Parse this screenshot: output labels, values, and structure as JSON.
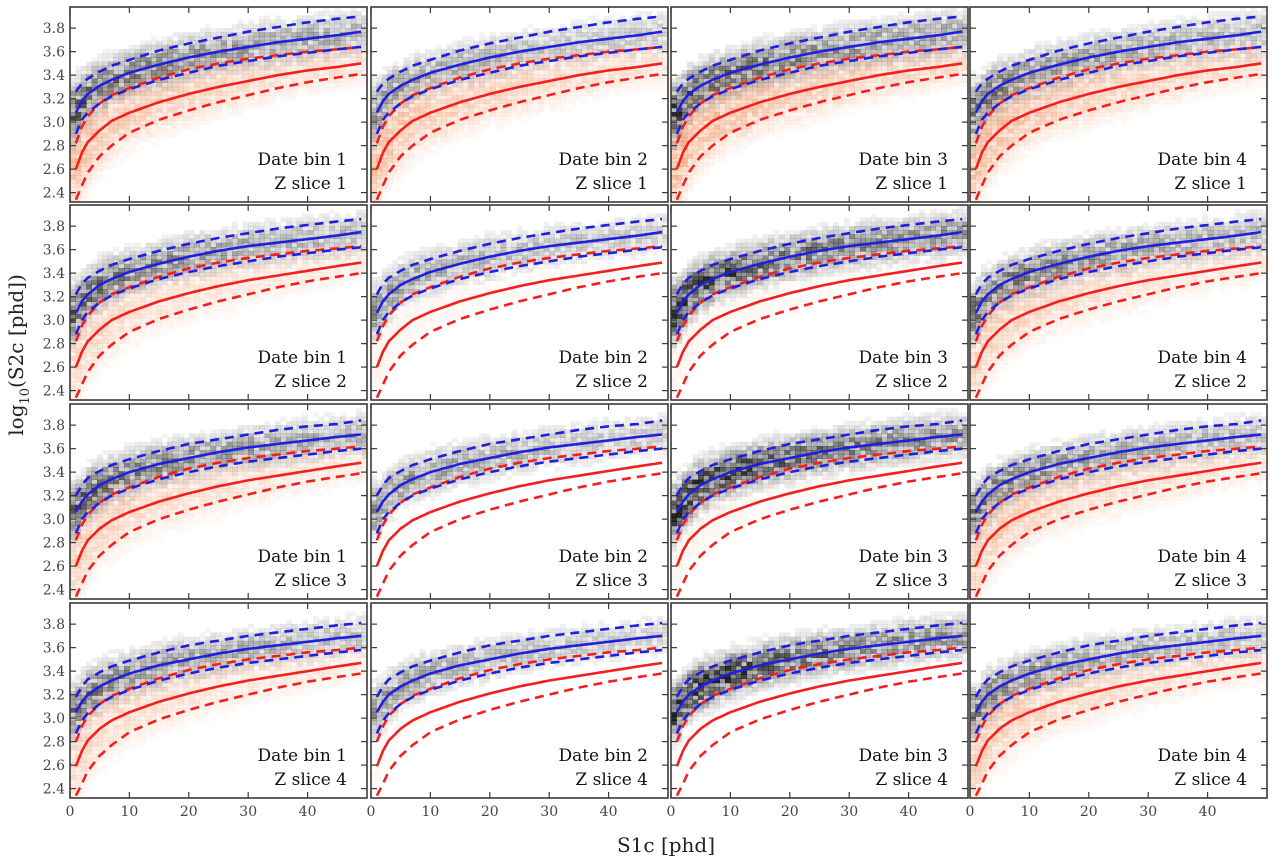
{
  "figure": {
    "xlabel": "S1c [phd]",
    "ylabel_base": "log",
    "ylabel_sub": "10",
    "ylabel_rest": "(S2c [phd])"
  },
  "colors": {
    "er_band": "#1f1fe0",
    "nr_band": "#f21f1f",
    "er_hist": "#000000",
    "nr_hist": "#f07a3a",
    "frame": "#3a3a3a"
  },
  "chart_data": {
    "type": "heatmap",
    "layout": "grid 4 rows x 4 columns",
    "xlabel": "S1c [phd]",
    "ylabel": "log10(S2c [phd])",
    "xlim": [
      0,
      50
    ],
    "ylim": [
      2.32,
      3.98
    ],
    "xticks": [
      0,
      10,
      20,
      30,
      40
    ],
    "yticks": [
      2.4,
      2.6,
      2.8,
      3.0,
      3.2,
      3.4,
      3.6,
      3.8
    ],
    "columns": [
      "Date bin 1",
      "Date bin 2",
      "Date bin 3",
      "Date bin 4"
    ],
    "rows": [
      "Z slice 1",
      "Z slice 2",
      "Z slice 3",
      "Z slice 4"
    ],
    "band_x": [
      1,
      2,
      3,
      5,
      7,
      10,
      15,
      20,
      25,
      30,
      35,
      40,
      45,
      49
    ],
    "bands_by_row": [
      {
        "row": "Z slice 1",
        "er_median": [
          3.08,
          3.18,
          3.24,
          3.31,
          3.36,
          3.42,
          3.49,
          3.55,
          3.6,
          3.64,
          3.68,
          3.71,
          3.74,
          3.77
        ],
        "er_upper": [
          3.26,
          3.33,
          3.37,
          3.43,
          3.48,
          3.53,
          3.61,
          3.67,
          3.72,
          3.77,
          3.81,
          3.85,
          3.88,
          3.9
        ],
        "er_lower": [
          2.9,
          3.02,
          3.08,
          3.16,
          3.22,
          3.28,
          3.36,
          3.42,
          3.48,
          3.52,
          3.56,
          3.59,
          3.62,
          3.64
        ],
        "nr_median": [
          2.6,
          2.74,
          2.83,
          2.93,
          3.01,
          3.08,
          3.17,
          3.24,
          3.3,
          3.35,
          3.4,
          3.44,
          3.47,
          3.5
        ],
        "nr_upper": [
          2.82,
          2.96,
          3.05,
          3.16,
          3.23,
          3.29,
          3.38,
          3.45,
          3.5,
          3.54,
          3.57,
          3.6,
          3.62,
          3.64
        ],
        "nr_lower": [
          2.34,
          2.46,
          2.57,
          2.71,
          2.8,
          2.91,
          3.02,
          3.1,
          3.17,
          3.23,
          3.29,
          3.34,
          3.38,
          3.41
        ]
      },
      {
        "row": "Z slice 2",
        "er_median": [
          3.06,
          3.16,
          3.22,
          3.3,
          3.35,
          3.41,
          3.48,
          3.54,
          3.59,
          3.63,
          3.66,
          3.69,
          3.72,
          3.75
        ],
        "er_upper": [
          3.22,
          3.31,
          3.36,
          3.42,
          3.47,
          3.52,
          3.59,
          3.65,
          3.7,
          3.74,
          3.78,
          3.81,
          3.84,
          3.86
        ],
        "er_lower": [
          2.88,
          3.0,
          3.07,
          3.15,
          3.21,
          3.27,
          3.35,
          3.41,
          3.46,
          3.5,
          3.54,
          3.57,
          3.6,
          3.62
        ],
        "nr_median": [
          2.6,
          2.73,
          2.82,
          2.92,
          3.0,
          3.07,
          3.16,
          3.23,
          3.29,
          3.34,
          3.38,
          3.42,
          3.46,
          3.49
        ],
        "nr_upper": [
          2.82,
          2.95,
          3.04,
          3.15,
          3.22,
          3.28,
          3.37,
          3.44,
          3.49,
          3.53,
          3.56,
          3.59,
          3.61,
          3.63
        ],
        "nr_lower": [
          2.34,
          2.45,
          2.56,
          2.7,
          2.79,
          2.9,
          3.01,
          3.09,
          3.16,
          3.22,
          3.28,
          3.33,
          3.37,
          3.4
        ]
      },
      {
        "row": "Z slice 3",
        "er_median": [
          3.06,
          3.15,
          3.21,
          3.29,
          3.34,
          3.4,
          3.47,
          3.52,
          3.57,
          3.61,
          3.64,
          3.67,
          3.7,
          3.72
        ],
        "er_upper": [
          3.2,
          3.29,
          3.35,
          3.41,
          3.46,
          3.51,
          3.58,
          3.64,
          3.68,
          3.72,
          3.76,
          3.79,
          3.81,
          3.84
        ],
        "er_lower": [
          2.88,
          3.0,
          3.06,
          3.14,
          3.2,
          3.26,
          3.34,
          3.4,
          3.45,
          3.49,
          3.52,
          3.55,
          3.58,
          3.6
        ],
        "nr_median": [
          2.6,
          2.73,
          2.82,
          2.92,
          2.99,
          3.06,
          3.15,
          3.22,
          3.28,
          3.33,
          3.37,
          3.41,
          3.45,
          3.48
        ],
        "nr_upper": [
          2.82,
          2.95,
          3.04,
          3.14,
          3.21,
          3.27,
          3.36,
          3.43,
          3.48,
          3.52,
          3.55,
          3.58,
          3.6,
          3.62
        ],
        "nr_lower": [
          2.34,
          2.45,
          2.56,
          2.69,
          2.78,
          2.89,
          3.0,
          3.08,
          3.15,
          3.21,
          3.27,
          3.32,
          3.36,
          3.39
        ]
      },
      {
        "row": "Z slice 4",
        "er_median": [
          3.05,
          3.14,
          3.2,
          3.27,
          3.32,
          3.38,
          3.45,
          3.5,
          3.55,
          3.59,
          3.62,
          3.65,
          3.68,
          3.7
        ],
        "er_upper": [
          3.18,
          3.27,
          3.33,
          3.39,
          3.44,
          3.49,
          3.56,
          3.62,
          3.66,
          3.7,
          3.73,
          3.76,
          3.79,
          3.81
        ],
        "er_lower": [
          2.87,
          2.98,
          3.04,
          3.12,
          3.18,
          3.24,
          3.32,
          3.38,
          3.43,
          3.47,
          3.5,
          3.53,
          3.56,
          3.58
        ],
        "nr_median": [
          2.59,
          2.72,
          2.81,
          2.91,
          2.98,
          3.05,
          3.14,
          3.21,
          3.27,
          3.32,
          3.36,
          3.4,
          3.44,
          3.47
        ],
        "nr_upper": [
          2.8,
          2.93,
          3.02,
          3.12,
          3.19,
          3.25,
          3.34,
          3.41,
          3.46,
          3.5,
          3.53,
          3.56,
          3.58,
          3.6
        ],
        "nr_lower": [
          2.34,
          2.44,
          2.55,
          2.68,
          2.77,
          2.88,
          2.99,
          3.07,
          3.14,
          3.2,
          3.26,
          3.31,
          3.35,
          3.38
        ]
      }
    ],
    "histograms": {
      "er_density": [
        [
          0.7,
          0.45,
          0.8,
          0.6
        ],
        [
          0.65,
          0.45,
          0.95,
          0.65
        ],
        [
          0.7,
          0.5,
          1.0,
          0.6
        ],
        [
          0.6,
          0.45,
          1.0,
          0.55
        ]
      ],
      "nr_density": [
        [
          0.55,
          0.55,
          0.65,
          0.6
        ],
        [
          0.35,
          0.1,
          0.1,
          0.4
        ],
        [
          0.4,
          0.05,
          0.1,
          0.45
        ],
        [
          0.35,
          0.05,
          0.05,
          0.45
        ]
      ]
    },
    "panel_labels": [
      [
        "Date bin 1",
        "Z slice 1"
      ],
      [
        "Date bin 2",
        "Z slice 1"
      ],
      [
        "Date bin 3",
        "Z slice 1"
      ],
      [
        "Date bin 4",
        "Z slice 1"
      ],
      [
        "Date bin 1",
        "Z slice 2"
      ],
      [
        "Date bin 2",
        "Z slice 2"
      ],
      [
        "Date bin 3",
        "Z slice 2"
      ],
      [
        "Date bin 4",
        "Z slice 2"
      ],
      [
        "Date bin 1",
        "Z slice 3"
      ],
      [
        "Date bin 2",
        "Z slice 3"
      ],
      [
        "Date bin 3",
        "Z slice 3"
      ],
      [
        "Date bin 4",
        "Z slice 3"
      ],
      [
        "Date bin 1",
        "Z slice 4"
      ],
      [
        "Date bin 2",
        "Z slice 4"
      ],
      [
        "Date bin 3",
        "Z slice 4"
      ],
      [
        "Date bin 4",
        "Z slice 4"
      ]
    ]
  }
}
